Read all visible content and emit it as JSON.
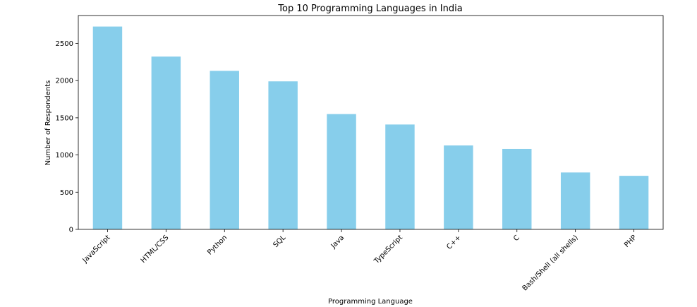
{
  "chart_data": {
    "type": "bar",
    "title": "Top 10 Programming Languages in India",
    "xlabel": "Programming Language",
    "ylabel": "Number of Respondents",
    "categories": [
      "JavaScript",
      "HTML/CSS",
      "Python",
      "SQL",
      "Java",
      "TypeScript",
      "C++",
      "C",
      "Bash/Shell (all shells)",
      "PHP"
    ],
    "values": [
      2727,
      2323,
      2131,
      1990,
      1550,
      1410,
      1128,
      1082,
      765,
      720
    ],
    "ylim": [
      0,
      2875
    ],
    "yticks": [
      0,
      500,
      1000,
      1500,
      2000,
      2500
    ],
    "bar_color": "#87ceeb",
    "grid": false,
    "legend": false
  }
}
